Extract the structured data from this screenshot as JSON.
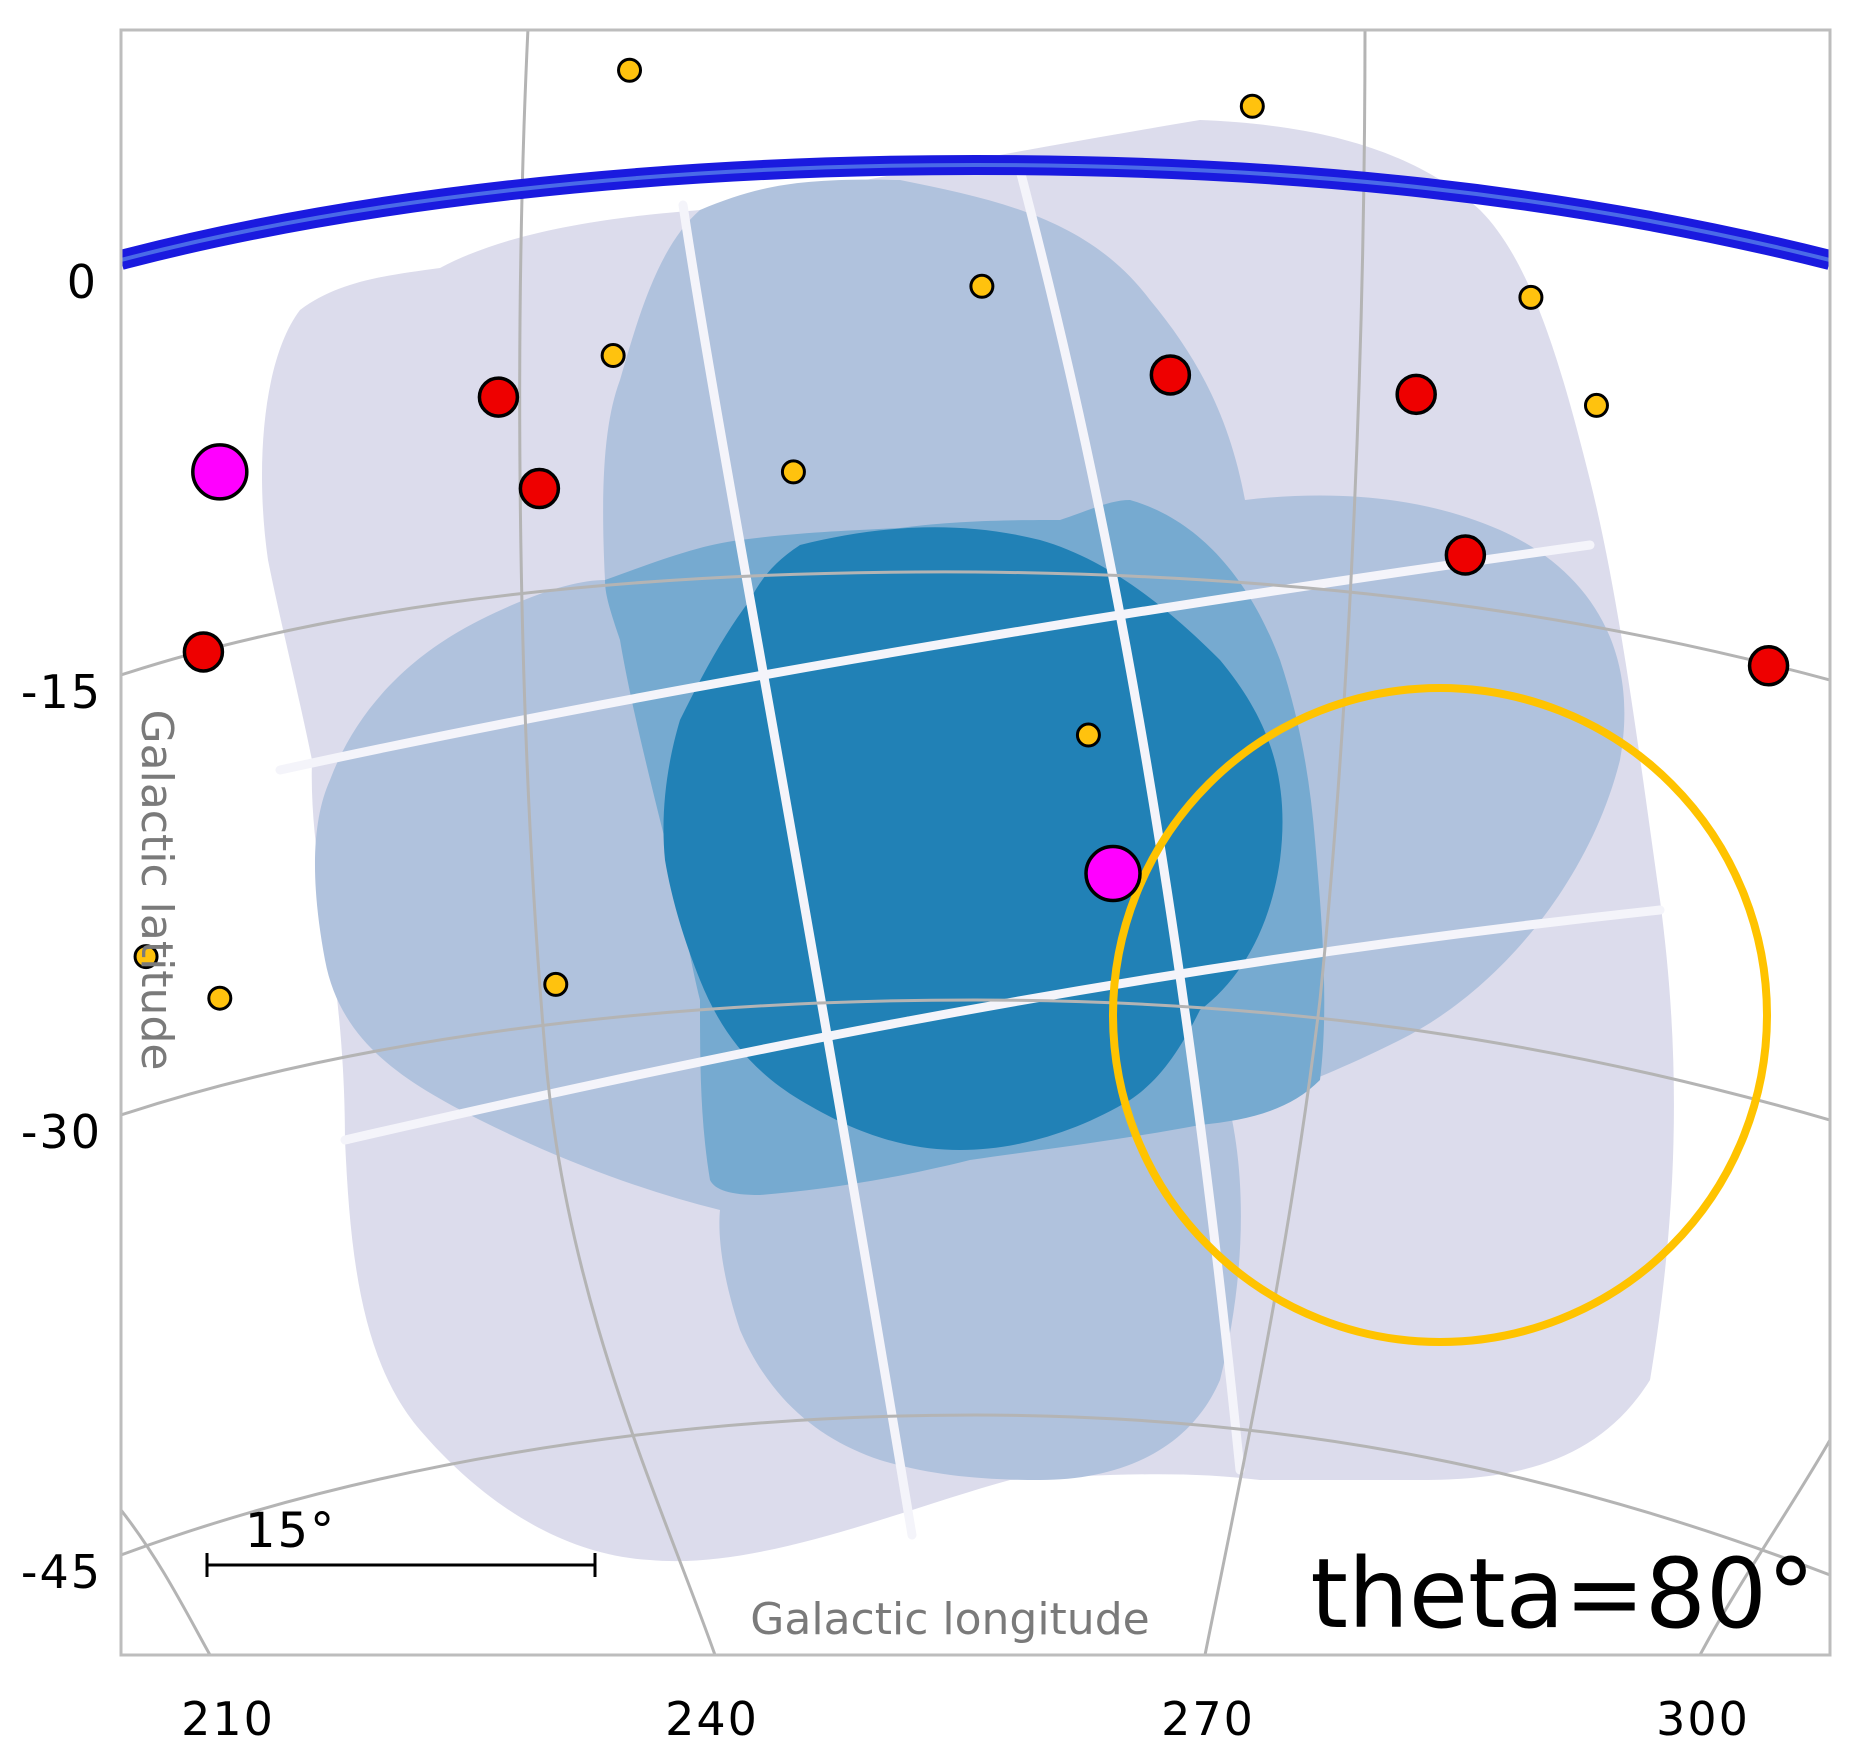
{
  "title": "theta=80°",
  "axes": {
    "xlabel": "Galactic longitude",
    "ylabel": "Galactic latitude",
    "x_ticks": [
      "210",
      "240",
      "270",
      "300"
    ],
    "y_ticks": [
      "0",
      "-15",
      "-30",
      "-45"
    ]
  },
  "scale_bar": {
    "label": "15°"
  },
  "colors": {
    "coverage_1": "#dcdcec",
    "coverage_2": "#b0c2dd",
    "coverage_3": "#76aad0",
    "coverage_4": "#2181b6",
    "galactic_plane": "#1a1adf",
    "large_circle": "#ffc300",
    "small_marker": "#ffc20e",
    "medium_marker": "#ee0000",
    "large_marker": "#ff00ff",
    "graticule": "#b4b4b4"
  },
  "markers": [
    {
      "size": "small",
      "l": 234.5,
      "b": 7.5
    },
    {
      "size": "small",
      "l": 272.5,
      "b": 6.2
    },
    {
      "size": "small",
      "l": 256.0,
      "b": -0.3
    },
    {
      "size": "small",
      "l": 289.5,
      "b": -0.7
    },
    {
      "size": "small",
      "l": 233.5,
      "b": -2.8
    },
    {
      "size": "small",
      "l": 293.5,
      "b": -4.6
    },
    {
      "size": "small",
      "l": 244.5,
      "b": -7.0
    },
    {
      "size": "small",
      "l": 262.5,
      "b": -16.5
    },
    {
      "size": "small",
      "l": 230.0,
      "b": -25.5
    },
    {
      "size": "small",
      "l": 205.0,
      "b": -24.5
    },
    {
      "size": "small",
      "l": 209.5,
      "b": -26.0
    },
    {
      "size": "medium",
      "l": 226.5,
      "b": -4.3
    },
    {
      "size": "medium",
      "l": 229.0,
      "b": -7.6
    },
    {
      "size": "medium",
      "l": 267.5,
      "b": -3.5
    },
    {
      "size": "medium",
      "l": 282.5,
      "b": -4.2
    },
    {
      "size": "medium",
      "l": 285.5,
      "b": -10.0
    },
    {
      "size": "medium",
      "l": 208.5,
      "b": -13.5
    },
    {
      "size": "medium",
      "l": 304.0,
      "b": -14.0
    },
    {
      "size": "large",
      "l": 209.5,
      "b": -7.0
    },
    {
      "size": "large",
      "l": 264.0,
      "b": -21.5
    }
  ],
  "large_circle": {
    "l": 283.0,
    "b": -25.5,
    "radius_deg": 12.5
  }
}
